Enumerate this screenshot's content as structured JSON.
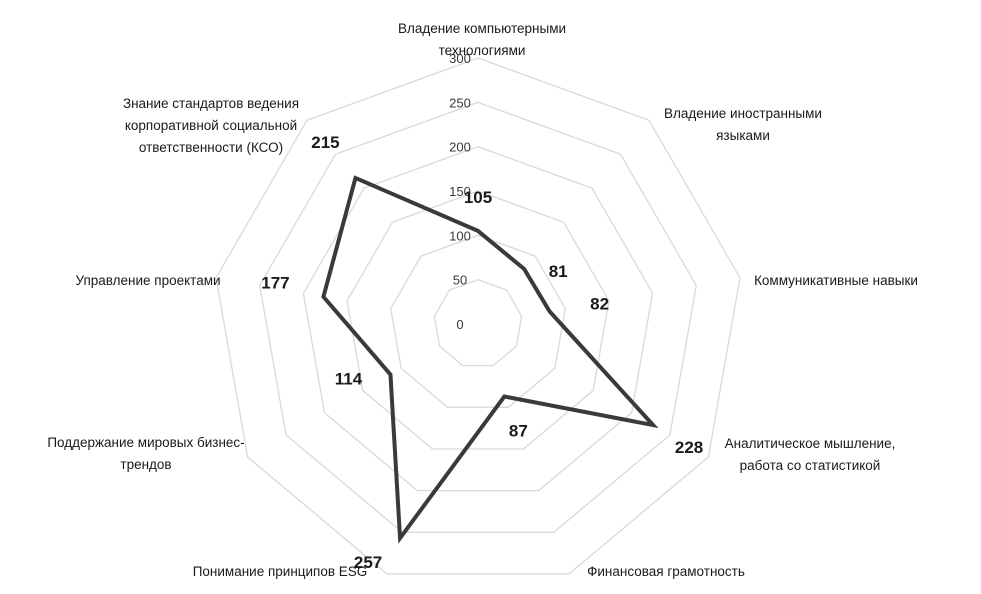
{
  "chart_data": {
    "type": "radar",
    "categories": [
      [
        "Владение компьютерными",
        "технологиями"
      ],
      [
        "Владение иностранными",
        "языками"
      ],
      [
        "Коммуникативные навыки"
      ],
      [
        "Аналитическое мышление,",
        "работа со статистикой"
      ],
      [
        "Финансовая грамотность"
      ],
      [
        "Понимание принципов ESG"
      ],
      [
        "Поддержание мировых бизнес-",
        "трендов"
      ],
      [
        "Управление проектами"
      ],
      [
        "Знание стандартов ведения",
        "корпоративной социальной",
        "ответственности (КСО)"
      ]
    ],
    "values": [
      105,
      81,
      82,
      228,
      87,
      257,
      114,
      177,
      215
    ],
    "data_labels": [
      "105",
      "81",
      "82",
      "228",
      "87",
      "257",
      "114",
      "177",
      "215"
    ],
    "rlim": [
      0,
      300
    ],
    "ticks": [
      0,
      50,
      100,
      150,
      200,
      250,
      300
    ],
    "tick_labels": [
      "0",
      "50",
      "100",
      "150",
      "200",
      "250",
      "300"
    ],
    "grid": true,
    "legend": "none",
    "colors": {
      "line": "#3a3a3a",
      "grid": "#d9d9d9"
    }
  }
}
